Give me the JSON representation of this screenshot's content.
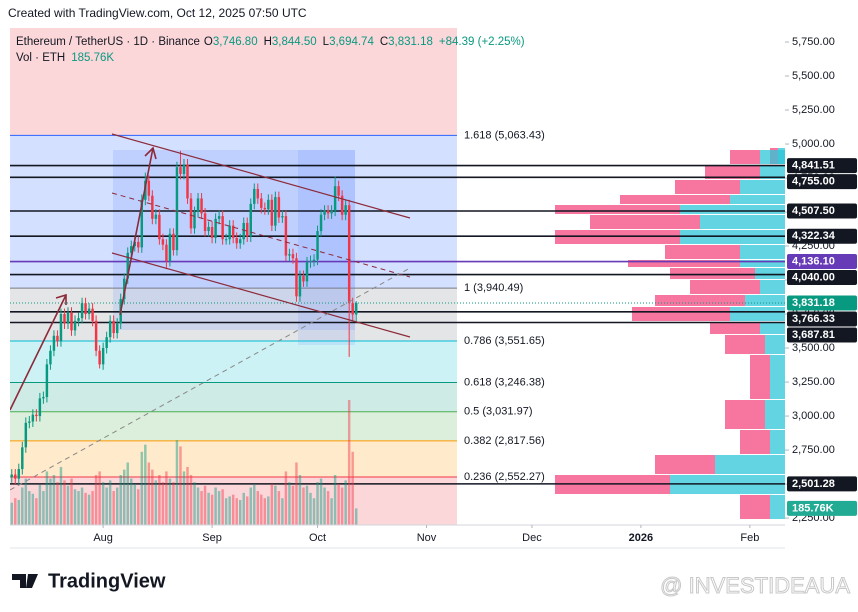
{
  "page": {
    "credit": "Created with TradingView.com, Oct 12, 2025 07:50 UTC",
    "brand": "TradingView",
    "watermark": "@ INVESTIDEAUA"
  },
  "chart_data": {
    "type": "candlestick",
    "legend": {
      "symbol": "Ethereum / TetherUS · 1D · Binance",
      "values": [
        {
          "key": "O",
          "value": "3,746.80"
        },
        {
          "key": "H",
          "value": "3,844.50"
        },
        {
          "key": "L",
          "value": "3,694.74"
        },
        {
          "key": "C",
          "value": "3,831.18"
        }
      ],
      "change": "+84.39 (+2.25%)",
      "volume_name": "Vol · ETH",
      "volume": "185.76K"
    },
    "up_color": "#089981",
    "down_color": "#f23645",
    "open": [
      2550,
      2570,
      2540,
      2610,
      2770,
      2950,
      2960,
      3010,
      3000,
      3130,
      3140,
      3380,
      3480,
      3590,
      3550,
      3750,
      3680,
      3760,
      3630,
      3700,
      3720,
      3830,
      3750,
      3790,
      3700,
      3480,
      3380,
      3500,
      3580,
      3700,
      3610,
      3680,
      3860,
      4010,
      4200,
      4250,
      4280,
      4240,
      4590,
      4730,
      4620,
      4450,
      4480,
      4300,
      4260,
      4140,
      4340,
      4220,
      4830,
      4780,
      4850,
      4600,
      4380,
      4500,
      4600,
      4490,
      4360,
      4390,
      4310,
      4450,
      4470,
      4300,
      4300,
      4400,
      4310,
      4270,
      4300,
      4420,
      4320,
      4560,
      4670,
      4600,
      4530,
      4520,
      4590,
      4400,
      4610,
      4460,
      4470,
      4180,
      4190,
      4160,
      3880,
      4030,
      3990,
      4130,
      4140,
      4150,
      4360,
      4480,
      4510,
      4490,
      4510,
      4690,
      4620,
      4480,
      4550,
      3830,
      3746.8
    ],
    "high": [
      2610,
      2610,
      2650,
      2810,
      2990,
      3000,
      3050,
      3050,
      3170,
      3180,
      3420,
      3520,
      3630,
      3630,
      3790,
      3790,
      3800,
      3800,
      3740,
      3760,
      3870,
      3870,
      3830,
      3830,
      3740,
      3520,
      3540,
      3620,
      3740,
      3740,
      3720,
      3900,
      4050,
      4240,
      4290,
      4320,
      4320,
      4630,
      4790,
      4770,
      4660,
      4520,
      4520,
      4340,
      4300,
      4380,
      4380,
      4870,
      4950,
      4890,
      4890,
      4640,
      4540,
      4640,
      4640,
      4530,
      4430,
      4430,
      4490,
      4510,
      4510,
      4340,
      4440,
      4440,
      4350,
      4340,
      4460,
      4460,
      4600,
      4710,
      4710,
      4640,
      4570,
      4630,
      4630,
      4650,
      4650,
      4510,
      4510,
      4230,
      4230,
      4200,
      4070,
      4070,
      4170,
      4180,
      4190,
      4400,
      4520,
      4550,
      4550,
      4550,
      4760,
      4730,
      4660,
      4590,
      4590,
      3870,
      3844.5
    ],
    "low": [
      2510,
      2500,
      2500,
      2570,
      2730,
      2910,
      2920,
      2960,
      2960,
      3090,
      3100,
      3340,
      3440,
      3510,
      3510,
      3640,
      3640,
      3590,
      3590,
      3660,
      3680,
      3710,
      3710,
      3660,
      3440,
      3350,
      3340,
      3460,
      3540,
      3570,
      3570,
      3640,
      3820,
      3970,
      4160,
      4210,
      4200,
      4200,
      4550,
      4580,
      4410,
      4410,
      4260,
      4220,
      4080,
      4100,
      4180,
      4180,
      4740,
      4740,
      4560,
      4340,
      4340,
      4460,
      4450,
      4320,
      4320,
      4270,
      4270,
      4410,
      4260,
      4260,
      4260,
      4270,
      4230,
      4230,
      4260,
      4280,
      4280,
      4520,
      4560,
      4490,
      4480,
      4480,
      4360,
      4360,
      4420,
      4420,
      4140,
      4140,
      4120,
      3840,
      3840,
      3950,
      3950,
      4090,
      4100,
      4110,
      4320,
      4440,
      4450,
      4450,
      4470,
      4580,
      4440,
      4440,
      3435,
      3700,
      3694.74
    ],
    "close": [
      2570,
      2540,
      2610,
      2770,
      2950,
      2960,
      3010,
      3000,
      3130,
      3140,
      3380,
      3480,
      3590,
      3550,
      3750,
      3680,
      3760,
      3630,
      3700,
      3720,
      3830,
      3750,
      3790,
      3700,
      3480,
      3380,
      3500,
      3580,
      3700,
      3610,
      3680,
      3860,
      4010,
      4200,
      4250,
      4280,
      4240,
      4590,
      4730,
      4620,
      4450,
      4480,
      4300,
      4260,
      4140,
      4340,
      4220,
      4830,
      4780,
      4850,
      4600,
      4380,
      4500,
      4600,
      4490,
      4360,
      4390,
      4310,
      4450,
      4470,
      4300,
      4300,
      4400,
      4310,
      4270,
      4300,
      4420,
      4320,
      4560,
      4670,
      4600,
      4530,
      4520,
      4590,
      4400,
      4610,
      4460,
      4470,
      4180,
      4190,
      4160,
      3880,
      4030,
      3990,
      4130,
      4140,
      4150,
      4360,
      4480,
      4510,
      4490,
      4510,
      4690,
      4620,
      4480,
      4550,
      3830,
      3746.8,
      3831.18
    ],
    "volume": [
      250000,
      300000,
      280000,
      420000,
      520000,
      380000,
      350000,
      300000,
      450000,
      380000,
      600000,
      520000,
      560000,
      480000,
      650000,
      500000,
      440000,
      520000,
      400000,
      380000,
      420000,
      360000,
      340000,
      380000,
      560000,
      600000,
      480000,
      420000,
      500000,
      380000,
      420000,
      560000,
      620000,
      700000,
      520000,
      460000,
      400000,
      820000,
      900000,
      700000,
      620000,
      500000,
      560000,
      480000,
      600000,
      520000,
      480000,
      950000,
      880000,
      600000,
      650000,
      560000,
      480000,
      420000,
      380000,
      440000,
      360000,
      340000,
      420000,
      380000,
      400000,
      300000,
      320000,
      340000,
      300000,
      280000,
      360000,
      320000,
      420000,
      460000,
      380000,
      340000,
      300000,
      320000,
      460000,
      440000,
      380000,
      300000,
      600000,
      480000,
      440000,
      700000,
      560000,
      420000,
      440000,
      360000,
      300000,
      480000,
      520000,
      420000,
      380000,
      300000,
      560000,
      460000,
      420000,
      500000,
      1400000,
      820000,
      185760
    ],
    "volume_label": "185.76K",
    "xlim": [
      -0.5,
      220
    ],
    "xticks": [
      {
        "value": 26,
        "label": "Aug"
      },
      {
        "value": 57,
        "label": "Sep"
      },
      {
        "value": 87,
        "label": "Oct"
      },
      {
        "value": 118,
        "label": "Nov"
      },
      {
        "value": 148,
        "label": "Dec"
      },
      {
        "value": 179,
        "label": "2026"
      },
      {
        "value": 210,
        "label": "Feb"
      }
    ],
    "ylim": [
      2199,
      5853
    ],
    "yticks": [
      {
        "value": 2250,
        "label": "2,250.00"
      },
      {
        "value": 2500,
        "label": "2,500.00"
      },
      {
        "value": 2750,
        "label": "2,750.00"
      },
      {
        "value": 3000,
        "label": "3,000.00"
      },
      {
        "value": 3250,
        "label": "3,250.00"
      },
      {
        "value": 3500,
        "label": "3,500.00"
      },
      {
        "value": 3750,
        "label": "3,750.00"
      },
      {
        "value": 4000,
        "label": "4,000.00"
      },
      {
        "value": 4250,
        "label": "4,250.00"
      },
      {
        "value": 4500,
        "label": "4,500.00"
      },
      {
        "value": 4750,
        "label": "4,750.00"
      },
      {
        "value": 5000,
        "label": "5,000.00"
      },
      {
        "value": 5250,
        "label": "5,250.00"
      },
      {
        "value": 5500,
        "label": "5,500.00"
      },
      {
        "value": 5750,
        "label": "5,750.00"
      }
    ],
    "fib": [
      {
        "level": 1.618,
        "price": 5063.43,
        "label": "1.618 (5,063.43)",
        "color": "#2962ff"
      },
      {
        "level": 1,
        "price": 3940.49,
        "label": "1 (3,940.49)",
        "color": "#787b86"
      },
      {
        "level": 0.786,
        "price": 3551.65,
        "label": "0.786 (3,551.65)",
        "color": "#00bcd4"
      },
      {
        "level": 0.618,
        "price": 3246.38,
        "label": "0.618 (3,246.38)",
        "color": "#089981"
      },
      {
        "level": 0.5,
        "price": 3031.97,
        "label": "0.5 (3,031.97)",
        "color": "#4caf50"
      },
      {
        "level": 0.382,
        "price": 2817.56,
        "label": "0.382 (2,817.56)",
        "color": "#ff9800"
      },
      {
        "level": 0.236,
        "price": 2552.27,
        "label": "0.236 (2,552.27)",
        "color": "#f23645"
      }
    ],
    "price_lines": [
      {
        "value": 4841.51,
        "label": "4,841.51",
        "color": "#131722"
      },
      {
        "value": 4755,
        "label": "4,755.00",
        "color": "#131722"
      },
      {
        "value": 4507.5,
        "label": "4,507.50",
        "color": "#131722"
      },
      {
        "value": 4322.34,
        "label": "4,322.34",
        "color": "#131722"
      },
      {
        "value": 4136.1,
        "label": "4,136.10",
        "color": "#673ab7"
      },
      {
        "value": 4040,
        "label": "4,040.00",
        "color": "#131722"
      },
      {
        "value": 3831.18,
        "label": "3,831.18",
        "color": "#089981"
      },
      {
        "value": 3766.33,
        "label": "3,766.33",
        "color": "#131722"
      },
      {
        "value": 3687.81,
        "label": "3,687.81",
        "color": "#131722"
      },
      {
        "value": 2501.28,
        "label": "2,501.28",
        "color": "#131722"
      }
    ]
  }
}
